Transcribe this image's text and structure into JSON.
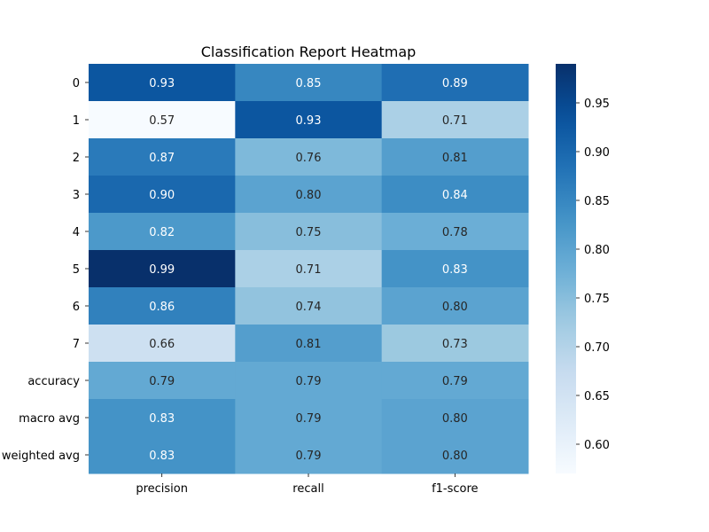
{
  "chart_data": {
    "type": "heatmap",
    "title": "Classification Report Heatmap",
    "xlabel": "",
    "ylabel": "",
    "columns": [
      "precision",
      "recall",
      "f1-score"
    ],
    "rows": [
      "0",
      "1",
      "2",
      "3",
      "4",
      "5",
      "6",
      "7",
      "accuracy",
      "macro avg",
      "weighted avg"
    ],
    "values": [
      [
        0.93,
        0.85,
        0.89
      ],
      [
        0.57,
        0.93,
        0.71
      ],
      [
        0.87,
        0.76,
        0.81
      ],
      [
        0.9,
        0.8,
        0.84
      ],
      [
        0.82,
        0.75,
        0.78
      ],
      [
        0.99,
        0.71,
        0.83
      ],
      [
        0.86,
        0.74,
        0.8
      ],
      [
        0.66,
        0.81,
        0.73
      ],
      [
        0.79,
        0.79,
        0.79
      ],
      [
        0.83,
        0.79,
        0.8
      ],
      [
        0.83,
        0.79,
        0.8
      ]
    ],
    "colormap": "Blues",
    "vmin": 0.57,
    "vmax": 0.99,
    "colorbar_ticks": [
      "0.60",
      "0.65",
      "0.70",
      "0.75",
      "0.80",
      "0.85",
      "0.90",
      "0.95"
    ],
    "annotations": true,
    "grid": false
  }
}
